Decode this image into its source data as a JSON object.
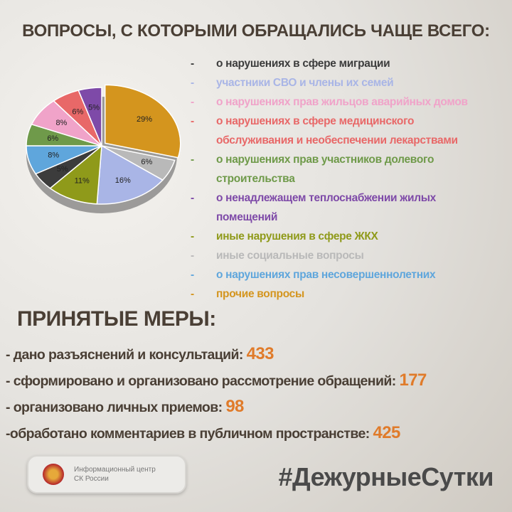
{
  "title": "ВОПРОСЫ, С КОТОРЫМИ ОБРАЩАЛИСЬ ЧАЩЕ ВСЕГО:",
  "chart_data": {
    "type": "pie",
    "categories": [
      "прочие вопросы",
      "иные социальные вопросы",
      "участники СВО и члены их семей",
      "иные нарушения в сфере ЖКХ",
      "о нарушениях в сфере миграции",
      "о нарушениях прав несовершеннолетних",
      "о нарушениях прав участников долевого строительства",
      "о нарушениях прав жильцов аварийных домов",
      "о нарушениях в сфере медицинского обслуживания и необеспечении лекарствами",
      "о ненадлежащем теплоснабжении жилых помещений"
    ],
    "values": [
      29,
      6,
      16,
      11,
      5,
      8,
      6,
      8,
      6,
      5
    ],
    "value_labels": [
      "29%",
      "6%",
      "16%",
      "11%",
      "5%",
      "8%",
      "6%",
      "8%",
      "6%",
      "5%"
    ],
    "colors": [
      "#d4951e",
      "#b9b9b9",
      "#a9b5e6",
      "#8f9a1a",
      "#3c3c3c",
      "#5fa6dc",
      "#6f9a4a",
      "#f0a3c9",
      "#e86868",
      "#7e4aa8"
    ]
  },
  "measures": {
    "title": "ПРИНЯТЫЕ МЕРЫ:",
    "items": [
      {
        "text": "- дано разъяснений и консультаций:",
        "value": 433
      },
      {
        "text": "- сформировано и организовано рассмотрение обращений:",
        "value": 177
      },
      {
        "text": "- организовано личных приемов:",
        "value": 98
      },
      {
        "text": "-обработано комментариев в публичном пространстве:",
        "value": 425
      }
    ]
  },
  "footer": {
    "logo": "Информационный центр СК России",
    "hashtag": "#ДежурныеСутки"
  }
}
